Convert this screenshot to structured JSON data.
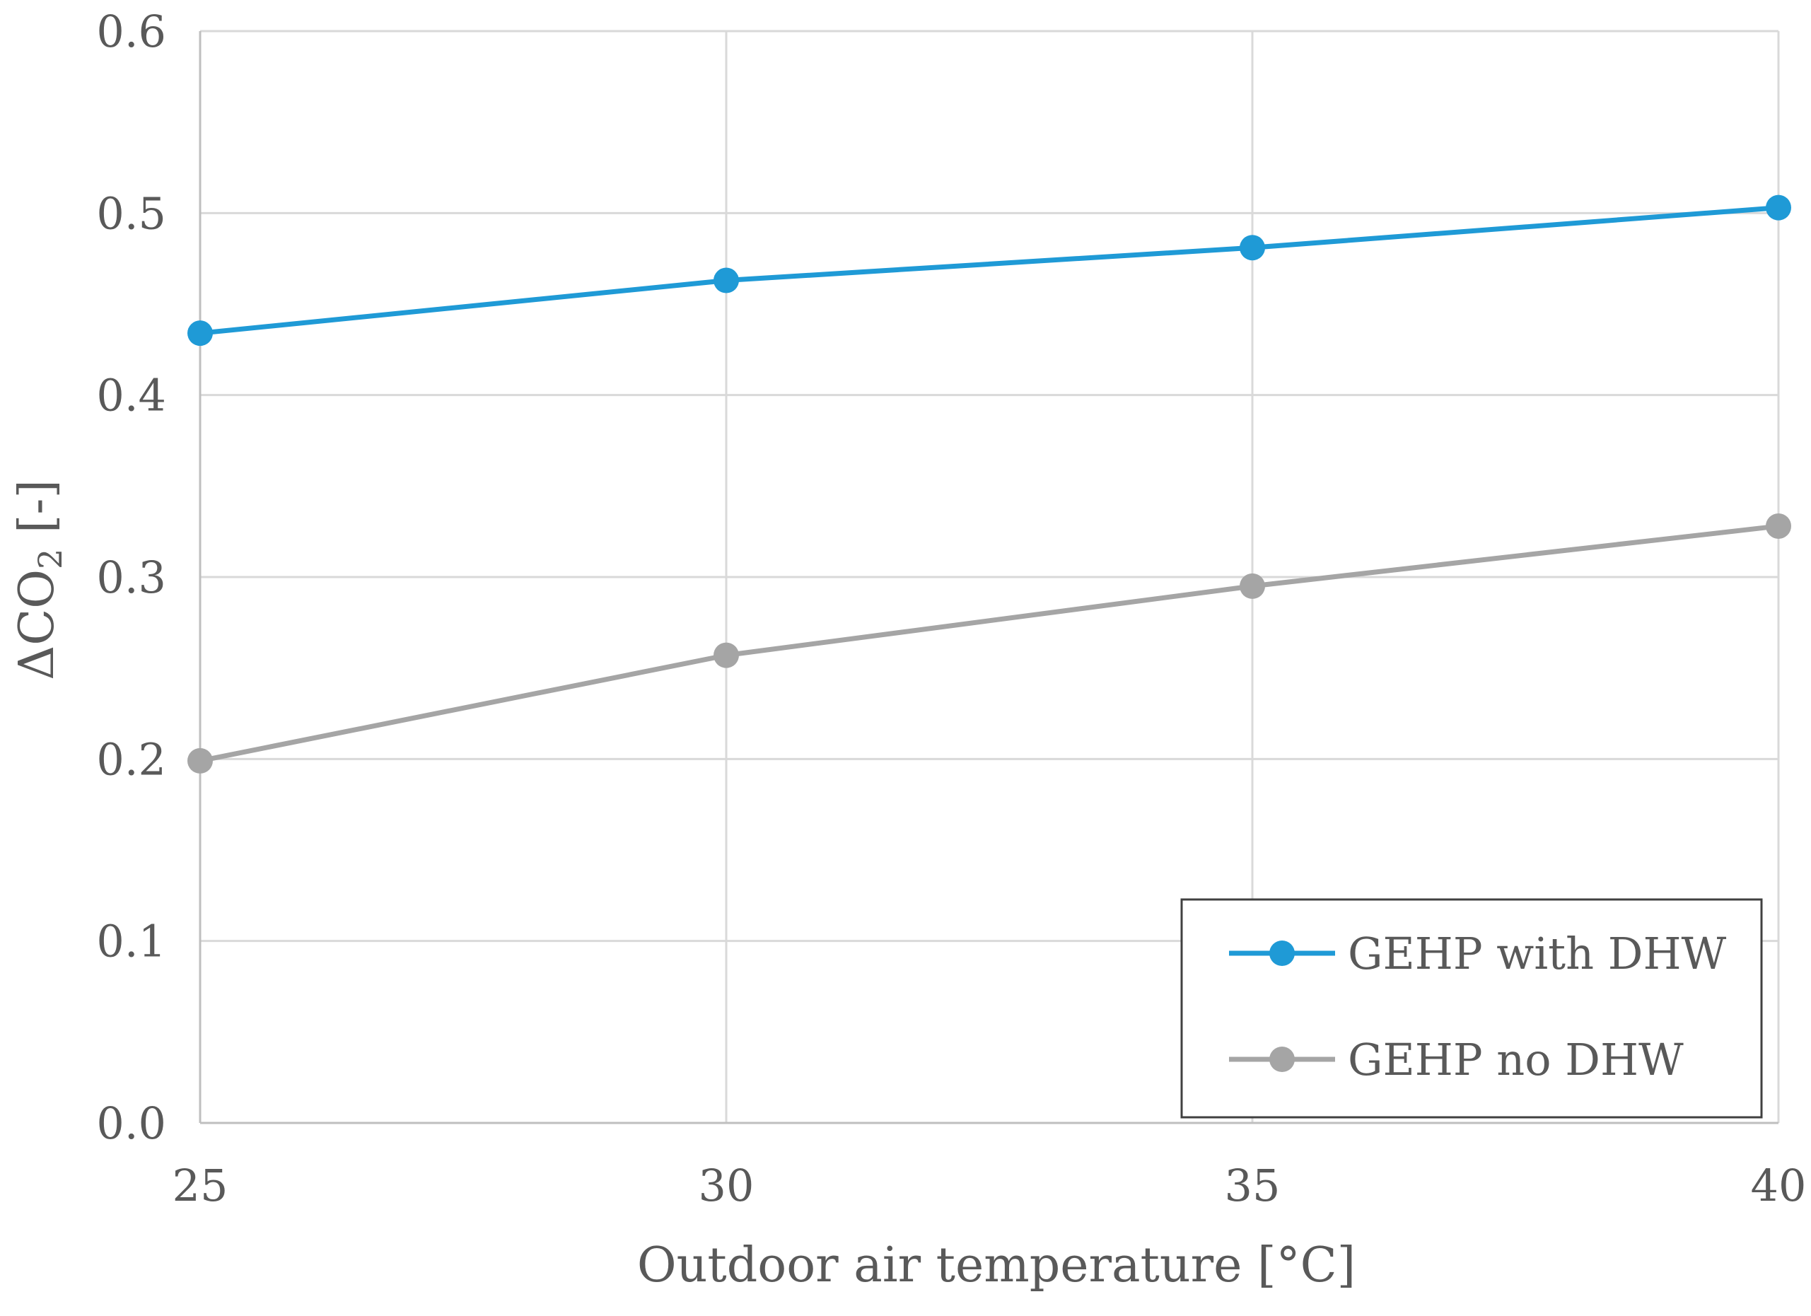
{
  "chart_data": {
    "type": "line",
    "title": "",
    "xlabel": "Outdoor air temperature [°C]",
    "ylabel": {
      "prefix": "ΔCO",
      "subscript": "2",
      "suffix": " [-]"
    },
    "x": [
      25,
      30,
      35,
      40
    ],
    "x_tick_labels": [
      "25",
      "30",
      "35",
      "40"
    ],
    "xlim": [
      25,
      40
    ],
    "ylim": [
      0,
      0.6
    ],
    "y_ticks": [
      0.0,
      0.1,
      0.2,
      0.3,
      0.4,
      0.5,
      0.6
    ],
    "y_tick_labels": [
      "0.0",
      "0.1",
      "0.2",
      "0.3",
      "0.4",
      "0.5",
      "0.6"
    ],
    "grid": true,
    "legend_position": "bottom-right",
    "series": [
      {
        "name": "GEHP with DHW",
        "color": "#1f9ad6",
        "values": [
          0.434,
          0.463,
          0.481,
          0.503
        ]
      },
      {
        "name": "GEHP no DHW",
        "color": "#a5a5a5",
        "values": [
          0.199,
          0.257,
          0.295,
          0.328
        ]
      }
    ]
  }
}
